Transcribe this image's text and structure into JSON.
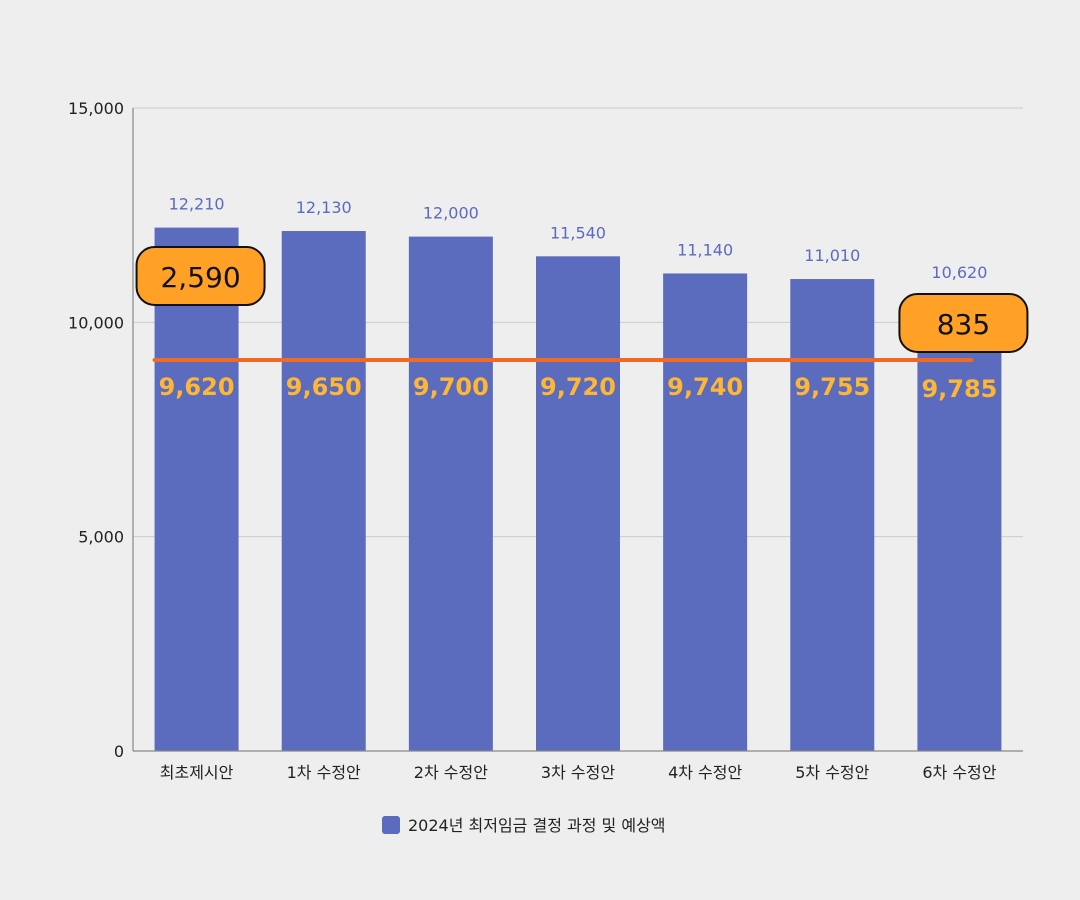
{
  "chart_data": {
    "type": "bar",
    "categories": [
      "최초제시안",
      "1차 수정안",
      "2차 수정안",
      "3차 수정안",
      "4차 수정안",
      "5차 수정안",
      "6차 수정안"
    ],
    "series": [
      {
        "name": "2024년 최저임금 결정 과정 및 예상액",
        "values": [
          12210,
          12130,
          12000,
          11540,
          11140,
          11010,
          10620
        ]
      }
    ],
    "overlay_labels": {
      "type": "line",
      "values": [
        9620,
        9650,
        9700,
        9720,
        9740,
        9755,
        9785
      ],
      "labels": [
        "9,620",
        "9,650",
        "9,700",
        "9,720",
        "9,740",
        "9,755",
        "9,785"
      ]
    },
    "bar_labels": [
      "12,210",
      "12,130",
      "12,000",
      "11,540",
      "11,140",
      "11,010",
      "10,620"
    ],
    "annotations": [
      {
        "text": "2,590",
        "category_index": 0
      },
      {
        "text": "835",
        "category_index": 6
      }
    ],
    "y_ticks": [
      0,
      5000,
      10000,
      15000
    ],
    "y_tick_labels": [
      "0",
      "5,000",
      "10,000",
      "15,000"
    ],
    "ylim": [
      0,
      15000
    ],
    "grid": true,
    "legend": {
      "label": "2024년 최저임금 결정 과정 및 예상액",
      "position": "bottom"
    },
    "colors": {
      "bar": "#5b6bbd",
      "bar_label": "#5b6bbd",
      "line": "#f06a25",
      "line_label": "#ffb733",
      "callout_fill": "#ffa126",
      "callout_stroke": "#111111",
      "grid": "#cccccc",
      "axis": "#888888"
    }
  }
}
